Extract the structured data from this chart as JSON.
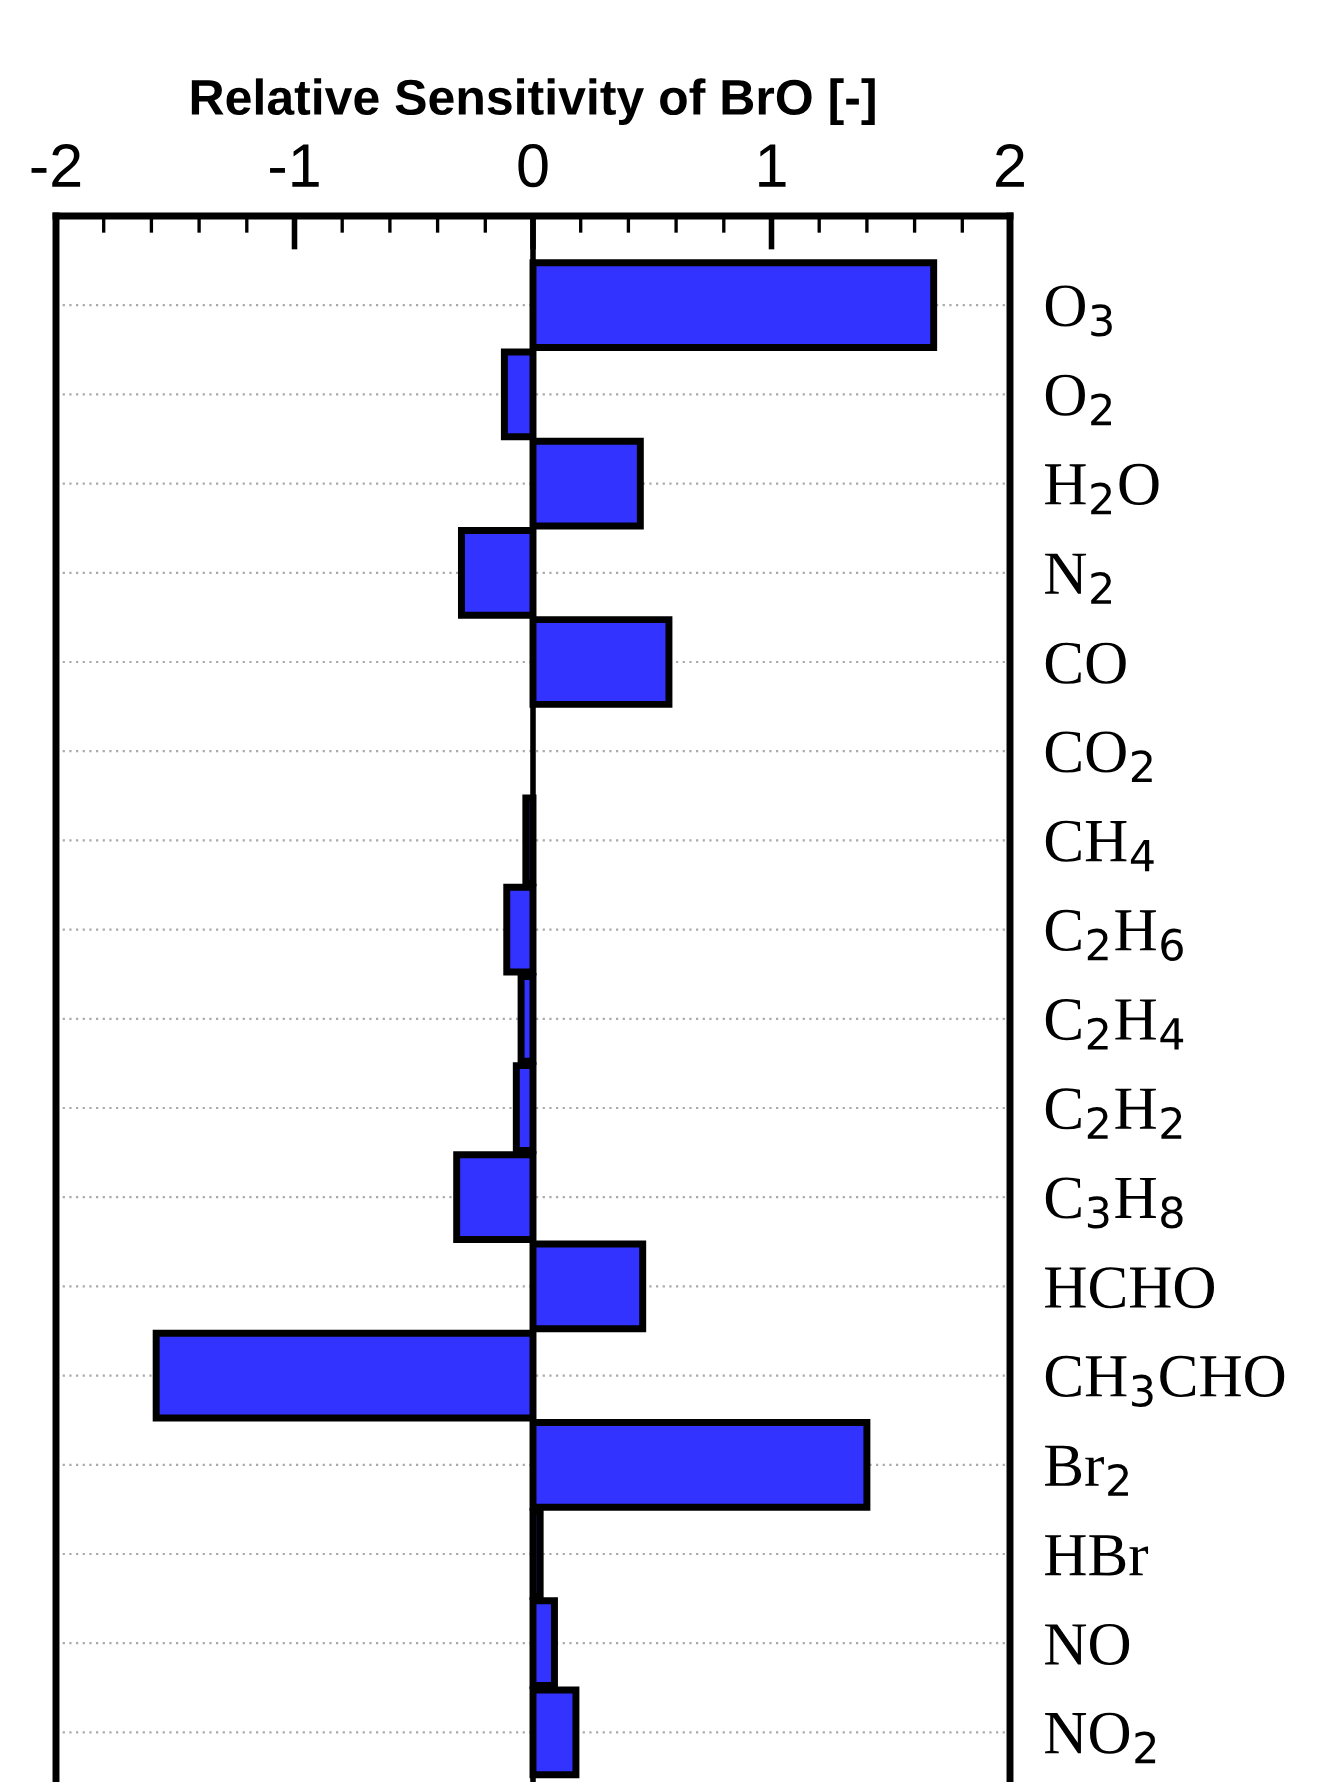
{
  "chart_data": {
    "type": "bar",
    "orientation": "horizontal",
    "xlabel": "Relative Sensitivity of BrO [-]",
    "categories": [
      "O$_{3}$",
      "O$_{2}$",
      "H$_{2}$O",
      "N$_{2}$",
      "CO",
      "CO$_{2}$",
      "CH$_{4}$",
      "C$_{2}$H$_{6}$",
      "C$_{2}$H$_{4}$",
      "C$_{2}$H$_{2}$",
      "C$_{3}$H$_{8}$",
      "HCHO",
      "CH$_{3}$CHO",
      "Br$_{2}$",
      "HBr",
      "NO",
      "NO$_{2}$"
    ],
    "values": [
      1.68,
      -0.12,
      0.45,
      -0.3,
      0.57,
      null,
      -0.03,
      -0.11,
      -0.05,
      -0.07,
      -0.32,
      0.46,
      -1.58,
      1.4,
      0.03,
      0.09,
      0.18
    ],
    "color": "#3333ff",
    "xlim": [
      -2,
      2
    ],
    "xticks": [
      -2,
      {
        "value": -1.8,
        "label": null
      },
      {
        "value": -1.6,
        "label": null
      },
      {
        "value": -1.4,
        "label": null
      },
      {
        "value": -1.2,
        "label": null
      },
      -1,
      {
        "value": -0.8,
        "label": null
      },
      {
        "value": -0.6,
        "label": null
      },
      {
        "value": -0.4,
        "label": null
      },
      {
        "value": -0.2,
        "label": null
      },
      0,
      {
        "value": 0.2,
        "label": null
      },
      {
        "value": 0.4,
        "label": null
      },
      {
        "value": 0.6,
        "label": null
      },
      {
        "value": 0.8,
        "label": null
      },
      1,
      {
        "value": 1.2,
        "label": null
      },
      {
        "value": 1.4,
        "label": null
      },
      {
        "value": 1.6,
        "label": null
      },
      {
        "value": 1.8,
        "label": null
      },
      2
    ],
    "grid": "y"
  }
}
